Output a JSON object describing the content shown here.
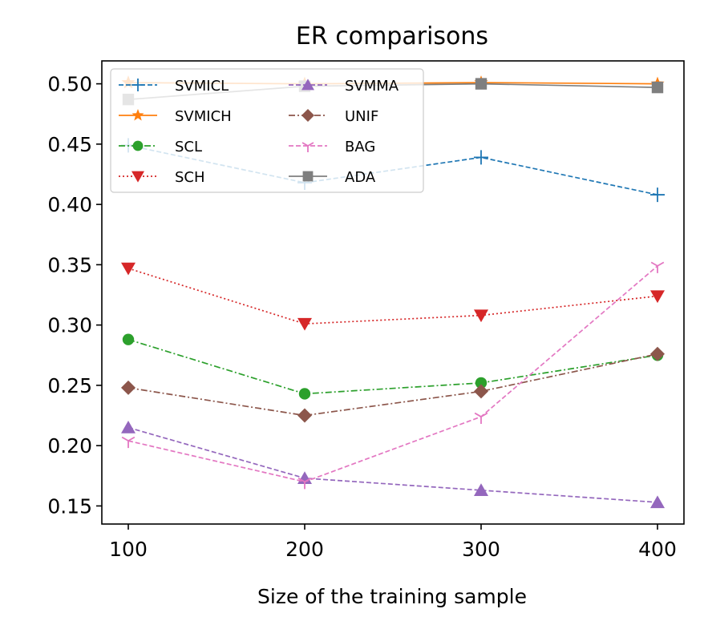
{
  "chart_data": {
    "type": "line",
    "title": "ER comparisons",
    "xlabel": "Size of the training sample",
    "ylabel": "",
    "x": [
      100,
      200,
      300,
      400
    ],
    "xlim": [
      85,
      415
    ],
    "ylim": [
      0.135,
      0.519
    ],
    "xticks": [
      "100",
      "200",
      "300",
      "400"
    ],
    "yticks": [
      "0.15",
      "0.20",
      "0.25",
      "0.30",
      "0.35",
      "0.40",
      "0.45",
      "0.50"
    ],
    "legend_position": "top-left",
    "series": [
      {
        "name": "SVMICL",
        "values": [
          0.449,
          0.418,
          0.439,
          0.408
        ],
        "color": "#1f77b4",
        "marker": "plus",
        "dash": "6,3"
      },
      {
        "name": "SVMICH",
        "values": [
          0.501,
          0.5,
          0.501,
          0.5
        ],
        "color": "#ff7f0e",
        "marker": "star",
        "dash": ""
      },
      {
        "name": "SCL",
        "values": [
          0.288,
          0.243,
          0.252,
          0.275
        ],
        "color": "#2ca02c",
        "marker": "circle",
        "dash": "8,3,2,3"
      },
      {
        "name": "SCH",
        "values": [
          0.347,
          0.301,
          0.308,
          0.324
        ],
        "color": "#d62728",
        "marker": "triangle-down",
        "dash": "2,3"
      },
      {
        "name": "SVMMA",
        "values": [
          0.215,
          0.173,
          0.163,
          0.153
        ],
        "color": "#9467bd",
        "marker": "triangle-up",
        "dash": "6,3"
      },
      {
        "name": "UNIF",
        "values": [
          0.248,
          0.225,
          0.245,
          0.276
        ],
        "color": "#8c564b",
        "marker": "diamond",
        "dash": "8,3,2,3"
      },
      {
        "name": "BAG",
        "values": [
          0.204,
          0.17,
          0.224,
          0.349
        ],
        "color": "#e377c2",
        "marker": "tri-down",
        "dash": "6,3"
      },
      {
        "name": "ADA",
        "values": [
          0.487,
          0.498,
          0.5,
          0.497
        ],
        "color": "#7f7f7f",
        "marker": "square",
        "dash": ""
      }
    ]
  }
}
